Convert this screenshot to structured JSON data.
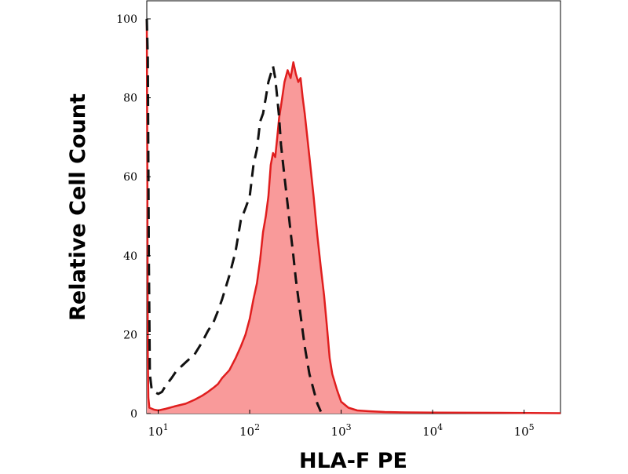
{
  "chart_data": {
    "type": "area",
    "xlabel": "HLA-F PE",
    "ylabel": "Relative Cell Count",
    "x_scale": "log",
    "xlim": [
      7.5,
      250000
    ],
    "ylim": [
      0,
      100
    ],
    "x_ticks": [
      {
        "value": 10,
        "base": "10",
        "exp": "1"
      },
      {
        "value": 100,
        "base": "10",
        "exp": "2"
      },
      {
        "value": 1000,
        "base": "10",
        "exp": "3"
      },
      {
        "value": 10000,
        "base": "10",
        "exp": "4"
      },
      {
        "value": 100000,
        "base": "10",
        "exp": "5"
      }
    ],
    "y_ticks": [
      {
        "value": 0,
        "label": "0"
      },
      {
        "value": 20,
        "label": "20"
      },
      {
        "value": 40,
        "label": "40"
      },
      {
        "value": 60,
        "label": "60"
      },
      {
        "value": 80,
        "label": "80"
      },
      {
        "value": 100,
        "label": "100"
      }
    ],
    "grid": false,
    "legend": "none",
    "series": [
      {
        "style": "filled-solid",
        "color": "#e01e1e",
        "fill": "#f99a9a",
        "points": [
          [
            7.5,
            100
          ],
          [
            7.6,
            60
          ],
          [
            7.7,
            15
          ],
          [
            7.8,
            4
          ],
          [
            8,
            1.5
          ],
          [
            9,
            1
          ],
          [
            10,
            0.8
          ],
          [
            12,
            1.2
          ],
          [
            15,
            1.8
          ],
          [
            20,
            2.5
          ],
          [
            25,
            3.5
          ],
          [
            30,
            4.5
          ],
          [
            35,
            5.5
          ],
          [
            40,
            6.5
          ],
          [
            45,
            7.5
          ],
          [
            50,
            9
          ],
          [
            60,
            11
          ],
          [
            70,
            14
          ],
          [
            80,
            17
          ],
          [
            90,
            20
          ],
          [
            100,
            24
          ],
          [
            110,
            29
          ],
          [
            120,
            33
          ],
          [
            130,
            39
          ],
          [
            140,
            46
          ],
          [
            150,
            50
          ],
          [
            160,
            55
          ],
          [
            170,
            63
          ],
          [
            180,
            66
          ],
          [
            190,
            65
          ],
          [
            200,
            70
          ],
          [
            210,
            75
          ],
          [
            220,
            78
          ],
          [
            240,
            84
          ],
          [
            260,
            87
          ],
          [
            280,
            85
          ],
          [
            300,
            89
          ],
          [
            320,
            86
          ],
          [
            340,
            84
          ],
          [
            360,
            85
          ],
          [
            380,
            80
          ],
          [
            400,
            76
          ],
          [
            450,
            65
          ],
          [
            500,
            55
          ],
          [
            550,
            45
          ],
          [
            600,
            37
          ],
          [
            650,
            30
          ],
          [
            700,
            22
          ],
          [
            750,
            14
          ],
          [
            800,
            10
          ],
          [
            900,
            6
          ],
          [
            1000,
            3
          ],
          [
            1200,
            1.5
          ],
          [
            1500,
            0.8
          ],
          [
            2000,
            0.6
          ],
          [
            3000,
            0.4
          ],
          [
            5000,
            0.3
          ],
          [
            10000,
            0.25
          ],
          [
            50000,
            0.2
          ],
          [
            250000,
            0.1
          ]
        ]
      },
      {
        "style": "dashed",
        "color": "#111111",
        "points": [
          [
            7.5,
            100
          ],
          [
            7.7,
            90
          ],
          [
            7.9,
            40
          ],
          [
            8.1,
            10
          ],
          [
            8.5,
            6
          ],
          [
            9,
            5.5
          ],
          [
            10,
            5
          ],
          [
            11,
            5.5
          ],
          [
            12,
            7
          ],
          [
            14,
            9
          ],
          [
            16,
            11
          ],
          [
            18,
            12
          ],
          [
            20,
            13
          ],
          [
            25,
            15
          ],
          [
            30,
            18
          ],
          [
            35,
            21
          ],
          [
            40,
            23
          ],
          [
            45,
            26
          ],
          [
            50,
            29
          ],
          [
            60,
            35
          ],
          [
            70,
            41
          ],
          [
            80,
            49
          ],
          [
            90,
            52
          ],
          [
            100,
            55
          ],
          [
            110,
            63
          ],
          [
            120,
            67
          ],
          [
            130,
            74
          ],
          [
            140,
            76
          ],
          [
            150,
            80
          ],
          [
            160,
            84
          ],
          [
            170,
            86
          ],
          [
            180,
            88
          ],
          [
            190,
            85
          ],
          [
            200,
            80
          ],
          [
            210,
            75
          ],
          [
            220,
            68
          ],
          [
            240,
            60
          ],
          [
            260,
            53
          ],
          [
            280,
            46
          ],
          [
            300,
            40
          ],
          [
            320,
            34
          ],
          [
            350,
            27
          ],
          [
            400,
            17
          ],
          [
            450,
            10
          ],
          [
            500,
            6
          ],
          [
            550,
            2.5
          ],
          [
            600,
            0.5
          ]
        ]
      }
    ]
  }
}
